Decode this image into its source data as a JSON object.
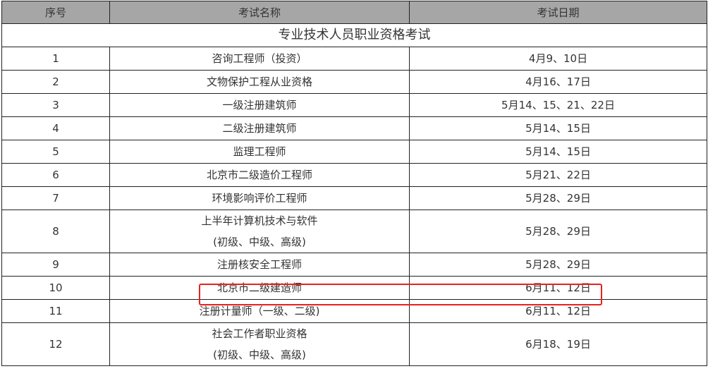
{
  "headers": [
    "序号",
    "考试名称",
    "考试日期"
  ],
  "section_title": "专业技术人员职业资格考试",
  "rows": [
    {
      "no": "1",
      "name": [
        "咨询工程师（投资）"
      ],
      "date": "4月9、10日"
    },
    {
      "no": "2",
      "name": [
        "文物保护工程从业资格"
      ],
      "date": "4月16、17日"
    },
    {
      "no": "3",
      "name": [
        "一级注册建筑师"
      ],
      "date": "5月14、15、21、22日"
    },
    {
      "no": "4",
      "name": [
        "二级注册建筑师"
      ],
      "date": "5月14、15日"
    },
    {
      "no": "5",
      "name": [
        "监理工程师"
      ],
      "date": "5月14、15日"
    },
    {
      "no": "6",
      "name": [
        "北京市二级造价工程师"
      ],
      "date": "5月21、22日"
    },
    {
      "no": "7",
      "name": [
        "环境影响评价工程师"
      ],
      "date": "5月28、29日"
    },
    {
      "no": "8",
      "name": [
        "上半年计算机技术与软件",
        "(初级、中级、高级)"
      ],
      "date": "5月28、29日"
    },
    {
      "no": "9",
      "name": [
        "注册核安全工程师"
      ],
      "date": "5月28、29日"
    },
    {
      "no": "10",
      "name": [
        "北京市二级建造师"
      ],
      "date": "6月11、12日",
      "highlighted": true
    },
    {
      "no": "11",
      "name": [
        "注册计量师（一级、二级)"
      ],
      "date": "6月11、12日"
    },
    {
      "no": "12",
      "name": [
        "社会工作者职业资格",
        "(初级、中级、高级)"
      ],
      "date": "6月18、19日"
    }
  ],
  "highlight_color": "#e8221c",
  "header_bg": "#a6a6a6"
}
